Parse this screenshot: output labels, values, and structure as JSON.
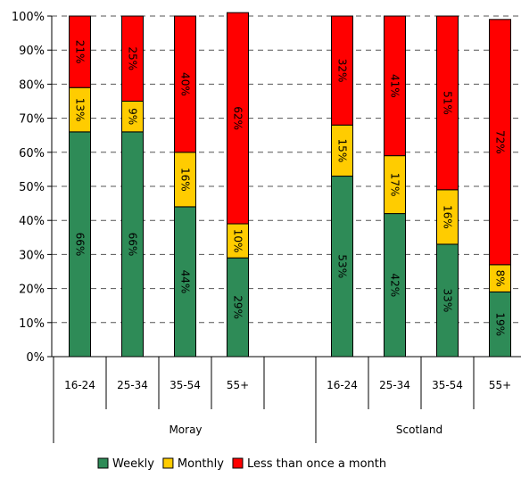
{
  "chart_data": {
    "type": "bar",
    "stacked": true,
    "percent_axis": true,
    "ylim": [
      0,
      100
    ],
    "y_ticks": [
      "0%",
      "10%",
      "20%",
      "30%",
      "40%",
      "50%",
      "60%",
      "70%",
      "80%",
      "90%",
      "100%"
    ],
    "groups": [
      {
        "name": "Moray",
        "categories": [
          "16-24",
          "25-34",
          "35-54",
          "55+"
        ]
      },
      {
        "name": "Scotland",
        "categories": [
          "16-24",
          "25-34",
          "35-54",
          "55+"
        ]
      }
    ],
    "series": [
      {
        "name": "Weekly",
        "color": "#2e8b57",
        "values": [
          66,
          66,
          44,
          29,
          53,
          42,
          33,
          19
        ],
        "labels": [
          "66%",
          "66%",
          "44%",
          "29%",
          "53%",
          "42%",
          "33%",
          "19%"
        ]
      },
      {
        "name": "Monthly",
        "color": "#ffcc00",
        "values": [
          13,
          9,
          16,
          10,
          15,
          17,
          16,
          8
        ],
        "labels": [
          "13%",
          "9%",
          "16%",
          "10%",
          "15%",
          "17%",
          "16%",
          "8%"
        ]
      },
      {
        "name": "Less than once a month",
        "color": "#ff0000",
        "values": [
          21,
          25,
          40,
          62,
          32,
          41,
          51,
          72
        ],
        "labels": [
          "21%",
          "25%",
          "40%",
          "62%",
          "32%",
          "41%",
          "51%",
          "72%"
        ]
      }
    ],
    "grid": true,
    "legend": "bottom"
  }
}
